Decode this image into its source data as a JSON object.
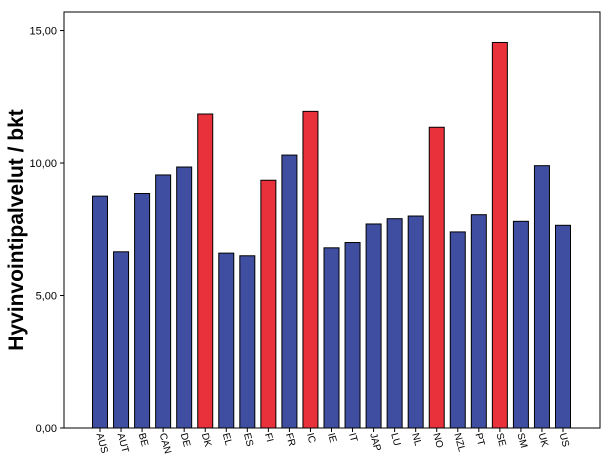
{
  "chart_data": {
    "type": "bar",
    "ylabel": "Hyvinvointipalvelut / bkt",
    "xlabel": "",
    "ylim": [
      0,
      15.7
    ],
    "yticks": [
      "0,00",
      "5,00",
      "10,00",
      "15,00"
    ],
    "ytick_values": [
      0,
      5,
      10,
      15
    ],
    "categories": [
      "AUS",
      "AUT",
      "BE",
      "CAN",
      "DE",
      "DK",
      "EL",
      "ES",
      "FI",
      "FR",
      "IC",
      "IE",
      "IT",
      "JAP",
      "LU",
      "NL",
      "NO",
      "NZL",
      "PT",
      "SE",
      "SM",
      "UK",
      "US"
    ],
    "values": [
      8.75,
      6.65,
      8.85,
      9.55,
      9.85,
      11.85,
      6.6,
      6.5,
      9.35,
      10.3,
      11.95,
      6.8,
      7.0,
      7.7,
      7.9,
      8.0,
      11.35,
      7.4,
      8.05,
      14.55,
      7.8,
      9.9,
      7.65
    ],
    "highlighted": [
      "DK",
      "FI",
      "IC",
      "NO",
      "SE"
    ],
    "colors": {
      "default": "#3f4ea0",
      "highlight": "#e8313a",
      "edge": "#000000"
    },
    "grid": false
  }
}
